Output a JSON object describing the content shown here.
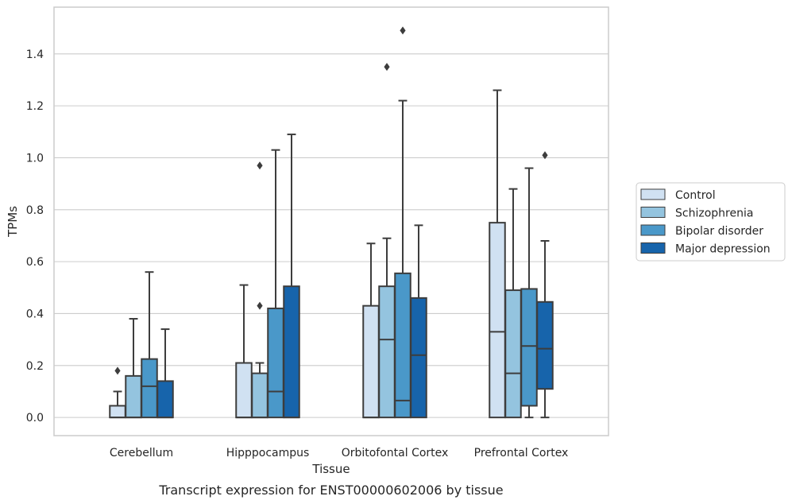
{
  "caption": "Transcript expression for ENST00000602006 by tissue",
  "chart_data": {
    "type": "box",
    "xlabel": "Tissue",
    "ylabel": "TPMs",
    "ylim": [
      -0.07,
      1.58
    ],
    "yticks": [
      0.0,
      0.2,
      0.4,
      0.6,
      0.8,
      1.0,
      1.2,
      1.4
    ],
    "ytick_labels": [
      "0.0",
      "0.2",
      "0.4",
      "0.6",
      "0.8",
      "1.0",
      "1.2",
      "1.4"
    ],
    "grid": "horizontal",
    "legend_position": "right",
    "categories": [
      "Cerebellum",
      "Hipppocampus",
      "Orbitofontal Cortex",
      "Prefrontal Cortex"
    ],
    "series": [
      {
        "name": "Control",
        "color": "#d0e1f2",
        "boxes": [
          {
            "q1": 0.0,
            "median": 0.0,
            "q3": 0.045,
            "whisker_low": 0.0,
            "whisker_high": 0.1,
            "outliers": [
              0.18
            ]
          },
          {
            "q1": 0.0,
            "median": 0.0,
            "q3": 0.21,
            "whisker_low": 0.0,
            "whisker_high": 0.51,
            "outliers": []
          },
          {
            "q1": 0.0,
            "median": 0.0,
            "q3": 0.43,
            "whisker_low": 0.0,
            "whisker_high": 0.67,
            "outliers": []
          },
          {
            "q1": 0.0,
            "median": 0.33,
            "q3": 0.75,
            "whisker_low": 0.0,
            "whisker_high": 1.26,
            "outliers": []
          }
        ]
      },
      {
        "name": "Schizophrenia",
        "color": "#94c4df",
        "boxes": [
          {
            "q1": 0.0,
            "median": 0.0,
            "q3": 0.16,
            "whisker_low": 0.0,
            "whisker_high": 0.38,
            "outliers": []
          },
          {
            "q1": 0.0,
            "median": 0.0,
            "q3": 0.17,
            "whisker_low": 0.0,
            "whisker_high": 0.21,
            "outliers": [
              0.43,
              0.97
            ]
          },
          {
            "q1": 0.0,
            "median": 0.3,
            "q3": 0.505,
            "whisker_low": 0.0,
            "whisker_high": 0.69,
            "outliers": [
              1.35
            ]
          },
          {
            "q1": 0.0,
            "median": 0.17,
            "q3": 0.49,
            "whisker_low": 0.0,
            "whisker_high": 0.88,
            "outliers": []
          }
        ]
      },
      {
        "name": "Bipolar disorder",
        "color": "#4a98c9",
        "boxes": [
          {
            "q1": 0.0,
            "median": 0.12,
            "q3": 0.225,
            "whisker_low": 0.0,
            "whisker_high": 0.56,
            "outliers": []
          },
          {
            "q1": 0.0,
            "median": 0.1,
            "q3": 0.42,
            "whisker_low": 0.0,
            "whisker_high": 1.03,
            "outliers": []
          },
          {
            "q1": 0.0,
            "median": 0.065,
            "q3": 0.555,
            "whisker_low": 0.0,
            "whisker_high": 1.22,
            "outliers": [
              1.49
            ]
          },
          {
            "q1": 0.045,
            "median": 0.275,
            "q3": 0.495,
            "whisker_low": 0.0,
            "whisker_high": 0.96,
            "outliers": []
          }
        ]
      },
      {
        "name": "Major depression",
        "color": "#1764ab",
        "boxes": [
          {
            "q1": 0.0,
            "median": 0.0,
            "q3": 0.14,
            "whisker_low": 0.0,
            "whisker_high": 0.34,
            "outliers": []
          },
          {
            "q1": 0.0,
            "median": 0.0,
            "q3": 0.505,
            "whisker_low": 0.0,
            "whisker_high": 1.09,
            "outliers": []
          },
          {
            "q1": 0.0,
            "median": 0.24,
            "q3": 0.46,
            "whisker_low": 0.0,
            "whisker_high": 0.74,
            "outliers": []
          },
          {
            "q1": 0.11,
            "median": 0.265,
            "q3": 0.445,
            "whisker_low": 0.0,
            "whisker_high": 0.68,
            "outliers": [
              1.01
            ]
          }
        ]
      }
    ]
  },
  "colors": {
    "grid": "#cccccc",
    "axes_edge": "#cccccc",
    "box_edge": "#3d3d3d",
    "text": "#262626"
  }
}
